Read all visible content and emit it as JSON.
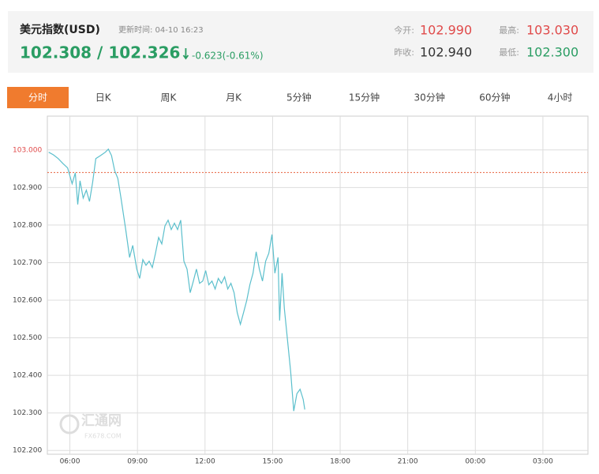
{
  "header": {
    "title": "美元指数(USD)",
    "update_time": "更新时间: 04-10 16:23",
    "price": "102.308 / 102.326",
    "change": "-0.623(-0.61%)",
    "stats": [
      {
        "label": "今开:",
        "value": "102.990",
        "color": "#e04a4a"
      },
      {
        "label": "最高:",
        "value": "103.030",
        "color": "#e04a4a"
      },
      {
        "label": "昨收:",
        "value": "102.940",
        "color": "#333333"
      },
      {
        "label": "最低:",
        "value": "102.300",
        "color": "#2a9d63"
      }
    ]
  },
  "tabs": [
    "分时",
    "日K",
    "周K",
    "月K",
    "5分钟",
    "15分钟",
    "30分钟",
    "60分钟",
    "4小时"
  ],
  "active_tab": 0,
  "watermark": {
    "name": "汇通网",
    "site": "FX678.COM"
  },
  "chart_data": {
    "type": "line",
    "color": "#5bbfcc",
    "grid": true,
    "prev_close": 102.94,
    "prev_close_color": "#e8603c",
    "xlim": [
      5,
      29
    ],
    "ylim": [
      102.19,
      103.09
    ],
    "xticks": [
      {
        "value": 6,
        "label": "06:00"
      },
      {
        "value": 9,
        "label": "09:00"
      },
      {
        "value": 12,
        "label": "12:00"
      },
      {
        "value": 15,
        "label": "15:00"
      },
      {
        "value": 18,
        "label": "18:00"
      },
      {
        "value": 21,
        "label": "21:00"
      },
      {
        "value": 24,
        "label": "00:00"
      },
      {
        "value": 27,
        "label": "03:00"
      }
    ],
    "yticks": [
      {
        "value": 103,
        "label": "103.000"
      },
      {
        "value": 102.9,
        "label": "102.900"
      },
      {
        "value": 102.8,
        "label": "102.800"
      },
      {
        "value": 102.7,
        "label": "102.700"
      },
      {
        "value": 102.6,
        "label": "102.600"
      },
      {
        "value": 102.5,
        "label": "102.500"
      },
      {
        "value": 102.4,
        "label": "102.400"
      },
      {
        "value": 102.3,
        "label": "102.300"
      },
      {
        "value": 102.2,
        "label": "102.200"
      }
    ],
    "x": [
      5.06,
      5.27,
      5.48,
      5.69,
      5.9,
      6.1,
      6.24,
      6.35,
      6.45,
      6.59,
      6.73,
      6.87,
      7.01,
      7.15,
      7.36,
      7.57,
      7.71,
      7.85,
      7.99,
      8.13,
      8.27,
      8.48,
      8.65,
      8.79,
      8.97,
      9.1,
      9.24,
      9.38,
      9.52,
      9.66,
      9.8,
      9.94,
      10.08,
      10.22,
      10.36,
      10.5,
      10.64,
      10.78,
      10.92,
      11.06,
      11.2,
      11.34,
      11.48,
      11.62,
      11.76,
      11.9,
      12.03,
      12.17,
      12.31,
      12.45,
      12.59,
      12.73,
      12.87,
      13.01,
      13.15,
      13.29,
      13.43,
      13.57,
      13.71,
      13.85,
      13.99,
      14.13,
      14.27,
      14.41,
      14.55,
      14.69,
      14.83,
      14.97,
      15.1,
      15.24,
      15.31,
      15.42,
      15.52,
      15.66,
      15.8,
      15.94,
      16.08,
      16.22,
      16.36,
      16.43
    ],
    "values": [
      102.994,
      102.987,
      102.977,
      102.964,
      102.952,
      102.91,
      102.939,
      102.855,
      102.918,
      102.872,
      102.893,
      102.863,
      102.914,
      102.977,
      102.985,
      102.994,
      103.002,
      102.985,
      102.945,
      102.924,
      102.872,
      102.788,
      102.714,
      102.746,
      102.683,
      102.658,
      102.708,
      102.693,
      102.704,
      102.687,
      102.725,
      102.767,
      102.75,
      102.798,
      102.813,
      102.788,
      102.805,
      102.788,
      102.813,
      102.704,
      102.683,
      102.62,
      102.651,
      102.683,
      102.645,
      102.651,
      102.679,
      102.641,
      102.651,
      102.63,
      102.658,
      102.645,
      102.662,
      102.63,
      102.645,
      102.62,
      102.567,
      102.536,
      102.567,
      102.599,
      102.641,
      102.672,
      102.729,
      102.683,
      102.651,
      102.704,
      102.725,
      102.775,
      102.672,
      102.714,
      102.546,
      102.672,
      102.578,
      102.494,
      102.41,
      102.305,
      102.351,
      102.363,
      102.336,
      102.309
    ]
  }
}
